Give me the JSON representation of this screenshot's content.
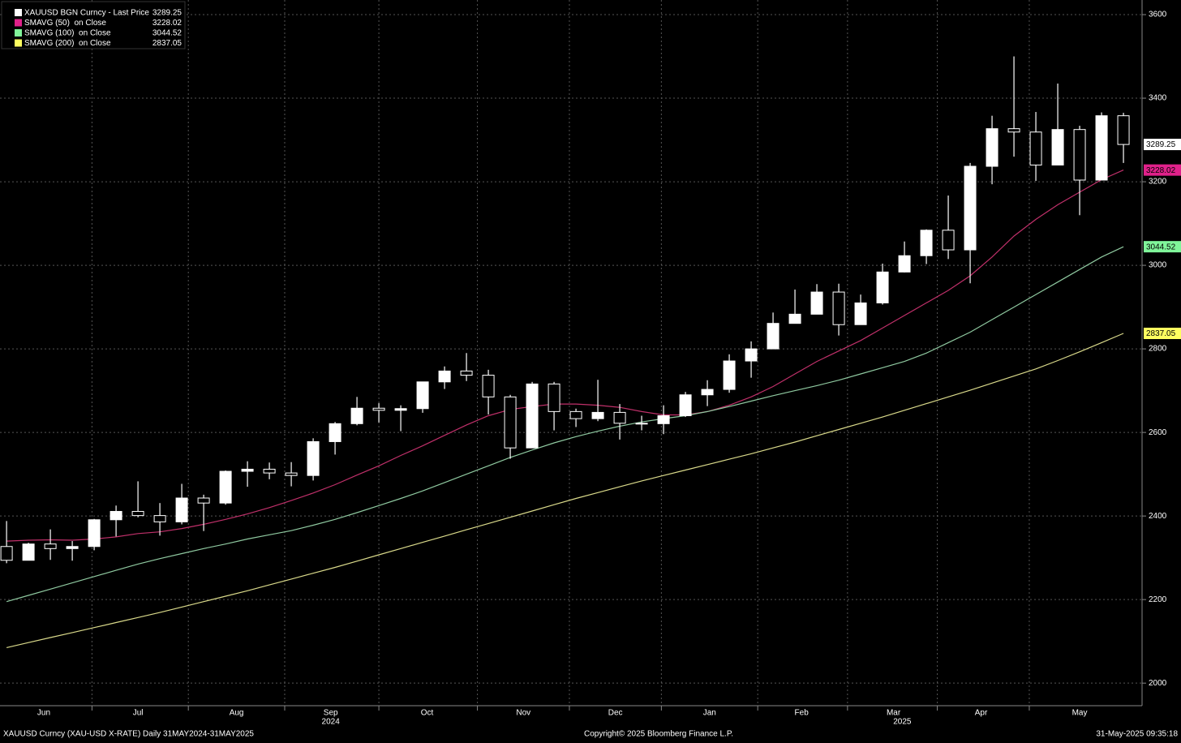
{
  "chart_data": {
    "type": "candlestick",
    "x": [
      0,
      1,
      2,
      3,
      4,
      5,
      6,
      7,
      8,
      9,
      10,
      11,
      12,
      13,
      14,
      15,
      16,
      17,
      18,
      19,
      20,
      21,
      22,
      23,
      24,
      25,
      26,
      27,
      28,
      29,
      30,
      31,
      32,
      33,
      34,
      35,
      36,
      37,
      38,
      39,
      40,
      41,
      42,
      43,
      44,
      45,
      46,
      47,
      48,
      49,
      50,
      51
    ],
    "xlim": [
      -0.3,
      51.85
    ],
    "xticks": [
      {
        "value": 1.7,
        "label": "Jun"
      },
      {
        "value": 6.0,
        "label": "Jul"
      },
      {
        "value": 10.5,
        "label": "Aug"
      },
      {
        "value": 14.8,
        "label": "Sep"
      },
      {
        "value": 19.2,
        "label": "Oct"
      },
      {
        "value": 23.6,
        "label": "Nov"
      },
      {
        "value": 27.8,
        "label": "Dec"
      },
      {
        "value": 32.1,
        "label": "Jan"
      },
      {
        "value": 36.3,
        "label": "Feb"
      },
      {
        "value": 40.5,
        "label": "Mar"
      },
      {
        "value": 44.5,
        "label": "Apr"
      },
      {
        "value": 49.0,
        "label": "May"
      }
    ],
    "year_labels": [
      {
        "value": 14.8,
        "label": "2024"
      },
      {
        "value": 40.9,
        "label": "2025"
      }
    ],
    "xgrid": [
      3.9,
      8.3,
      12.7,
      17.0,
      21.5,
      25.7,
      29.9,
      34.3,
      38.4,
      42.5,
      46.7
    ],
    "ylim": [
      1946,
      3635
    ],
    "yticks": [
      2000,
      2200,
      2400,
      2600,
      2800,
      3000,
      3200,
      3400,
      3600
    ],
    "grid": true,
    "candles": {
      "name": "XAUUSD BGN Curncy - Last Price",
      "color": "#ffffff",
      "open": [
        2327,
        2294,
        2333,
        2322,
        2327,
        2391,
        2411,
        2401,
        2386,
        2443,
        2431,
        2507,
        2512,
        2503,
        2497,
        2578,
        2621,
        2658,
        2653,
        2657,
        2721,
        2747,
        2737,
        2685,
        2563,
        2716,
        2650,
        2633,
        2648,
        2622,
        2621,
        2640,
        2690,
        2703,
        2771,
        2800,
        2861,
        2883,
        2936,
        2858,
        2910,
        2984,
        3023,
        3084,
        3037,
        3237,
        3327,
        3319,
        3240,
        3325,
        3204,
        3358
      ],
      "high": [
        2388,
        2336,
        2368,
        2340,
        2393,
        2425,
        2483,
        2431,
        2477,
        2451,
        2509,
        2531,
        2528,
        2529,
        2586,
        2625,
        2685,
        2670,
        2665,
        2721,
        2758,
        2790,
        2750,
        2690,
        2721,
        2721,
        2657,
        2726,
        2668,
        2640,
        2665,
        2697,
        2725,
        2787,
        2818,
        2887,
        2942,
        2955,
        2956,
        2930,
        3004,
        3057,
        3086,
        3167,
        3245,
        3358,
        3500,
        3367,
        3435,
        3334,
        3366,
        3365
      ],
      "low": [
        2287,
        2295,
        2295,
        2293,
        2318,
        2351,
        2397,
        2353,
        2380,
        2364,
        2427,
        2470,
        2488,
        2471,
        2485,
        2547,
        2617,
        2624,
        2603,
        2647,
        2704,
        2723,
        2643,
        2537,
        2563,
        2605,
        2613,
        2627,
        2583,
        2605,
        2596,
        2637,
        2663,
        2695,
        2731,
        2800,
        2864,
        2885,
        2832,
        2858,
        2906,
        2983,
        3003,
        3015,
        2957,
        3194,
        3260,
        3202,
        3240,
        3120,
        3204,
        3245
      ],
      "close": [
        2294,
        2333,
        2322,
        2327,
        2391,
        2411,
        2401,
        2386,
        2443,
        2431,
        2507,
        2512,
        2503,
        2497,
        2578,
        2621,
        2658,
        2653,
        2657,
        2721,
        2747,
        2737,
        2685,
        2563,
        2716,
        2650,
        2633,
        2648,
        2622,
        2621,
        2640,
        2690,
        2703,
        2771,
        2800,
        2861,
        2883,
        2936,
        2858,
        2910,
        2984,
        3023,
        3084,
        3037,
        3237,
        3327,
        3319,
        3240,
        3325,
        3204,
        3358,
        3289.25
      ]
    },
    "series": [
      {
        "name": "SMAVG (50)  on Close",
        "color": "#c0306a",
        "tag_color": "#e0218a",
        "values": [
          2340,
          2342,
          2343,
          2342,
          2345,
          2350,
          2358,
          2362,
          2370,
          2380,
          2392,
          2405,
          2420,
          2437,
          2455,
          2475,
          2498,
          2520,
          2545,
          2568,
          2593,
          2618,
          2640,
          2655,
          2662,
          2668,
          2668,
          2665,
          2660,
          2650,
          2642,
          2642,
          2650,
          2665,
          2685,
          2710,
          2740,
          2770,
          2795,
          2820,
          2850,
          2880,
          2910,
          2940,
          2975,
          3020,
          3070,
          3110,
          3145,
          3175,
          3205,
          3228.02
        ]
      },
      {
        "name": "SMAVG (100)  on Close",
        "color": "#8fc9a0",
        "tag_color": "#80f59a",
        "values": [
          2195,
          2210,
          2225,
          2240,
          2255,
          2270,
          2285,
          2298,
          2310,
          2322,
          2333,
          2345,
          2355,
          2365,
          2378,
          2392,
          2408,
          2425,
          2442,
          2460,
          2480,
          2500,
          2520,
          2540,
          2558,
          2575,
          2590,
          2603,
          2615,
          2625,
          2633,
          2640,
          2650,
          2662,
          2675,
          2688,
          2700,
          2712,
          2725,
          2740,
          2755,
          2770,
          2790,
          2815,
          2840,
          2870,
          2900,
          2930,
          2960,
          2990,
          3020,
          3044.52
        ]
      },
      {
        "name": "SMAVG (200)  on Close",
        "color": "#d9d98a",
        "tag_color": "#ffff60",
        "values": [
          2085,
          2097,
          2109,
          2121,
          2133,
          2145,
          2157,
          2169,
          2182,
          2195,
          2208,
          2221,
          2235,
          2249,
          2263,
          2277,
          2292,
          2307,
          2322,
          2337,
          2352,
          2367,
          2382,
          2397,
          2412,
          2427,
          2442,
          2456,
          2470,
          2484,
          2497,
          2510,
          2523,
          2536,
          2549,
          2563,
          2577,
          2592,
          2607,
          2622,
          2637,
          2653,
          2669,
          2685,
          2701,
          2718,
          2735,
          2752,
          2772,
          2793,
          2815,
          2837.05
        ]
      }
    ],
    "footer": {
      "left": "XAUUSD Curncy (XAU-USD X-RATE)  Daily 31MAY2024-31MAY2025",
      "center": "Copyright© 2025 Bloomberg Finance L.P.",
      "right": "31-May-2025 09:35:18"
    }
  }
}
